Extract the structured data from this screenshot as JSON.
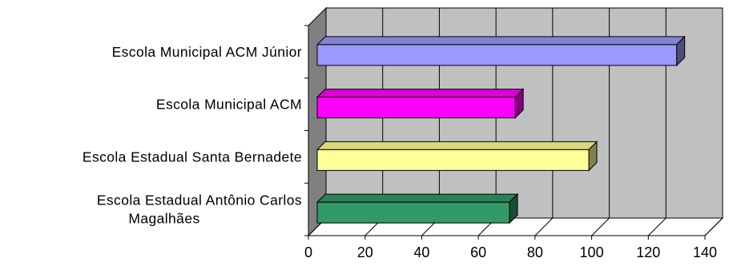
{
  "chart_data": {
    "type": "bar",
    "orientation": "horizontal",
    "style": "3d",
    "categories": [
      [
        "Escola Municipal ACM Júnior"
      ],
      [
        "Escola Municipal ACM"
      ],
      [
        "Escola Estadual Santa Bernadete"
      ],
      [
        "Escola Estadual Antônio Carlos",
        "Magalhães"
      ]
    ],
    "values": [
      130,
      73,
      99,
      71
    ],
    "colors": [
      "#9999FF",
      "#FF00FF",
      "#FFFF99",
      "#339966"
    ],
    "xlim": [
      0,
      140
    ],
    "xticks": [
      "0",
      "20",
      "40",
      "60",
      "80",
      "100",
      "120",
      "140"
    ],
    "title": "",
    "xlabel": "",
    "ylabel": "",
    "grid": true,
    "legend": "none",
    "wall_color": "#C0C0C0"
  }
}
